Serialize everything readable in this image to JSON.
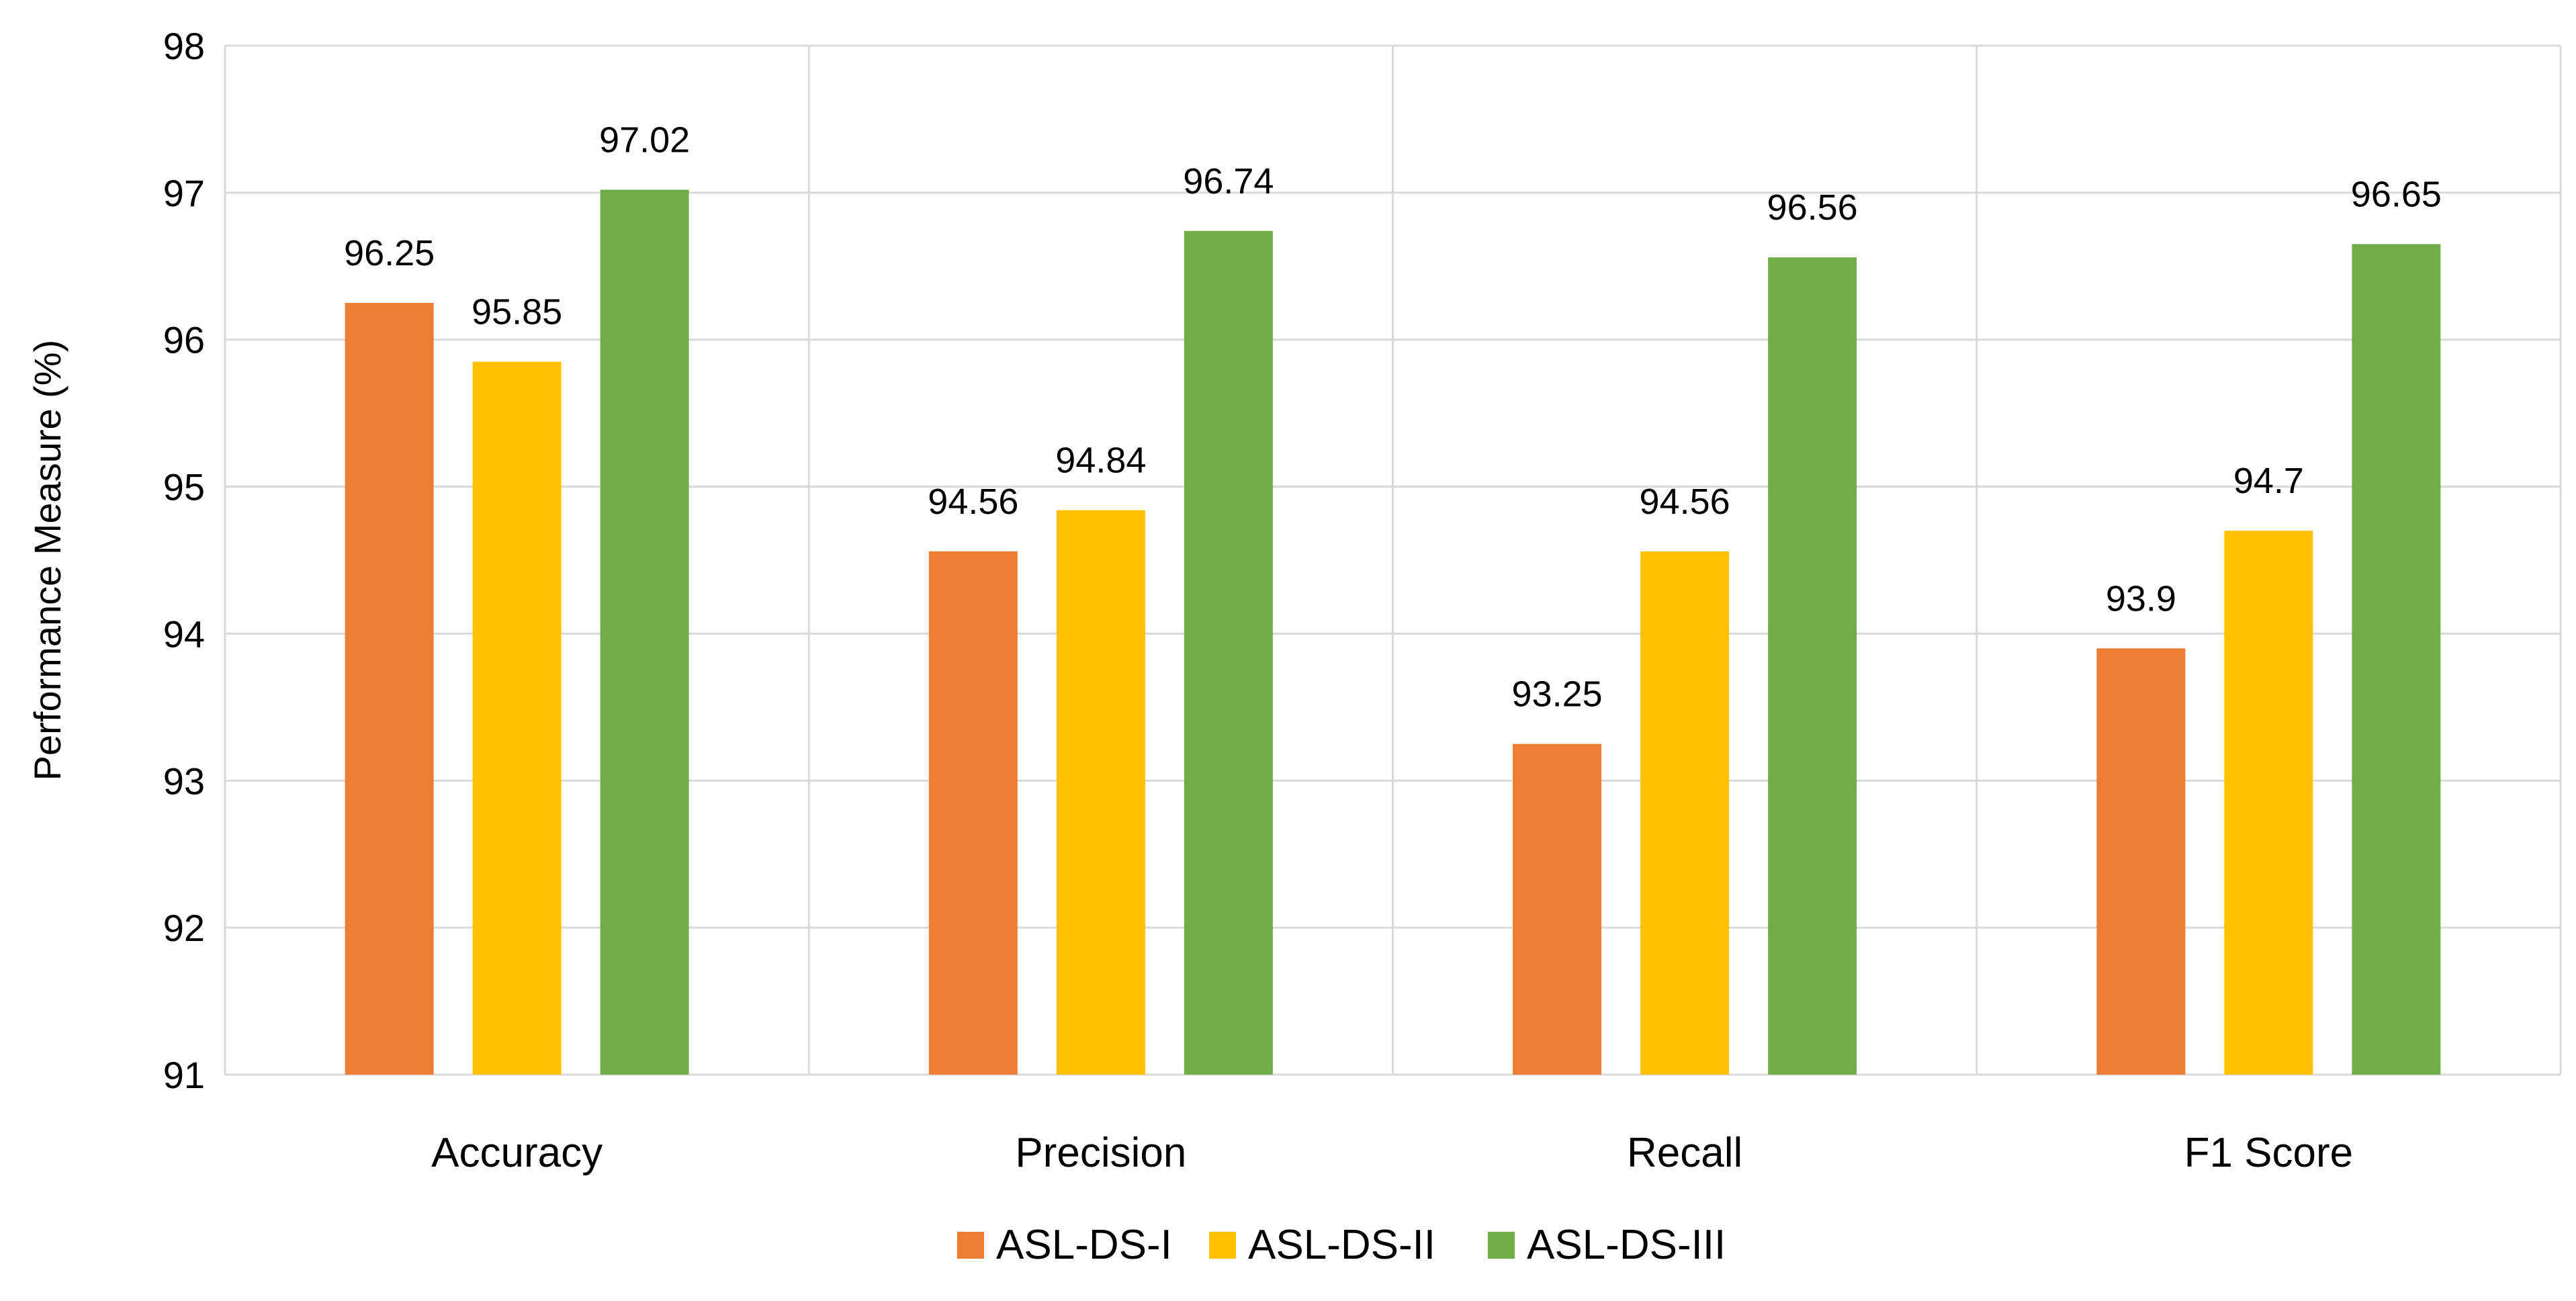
{
  "chart_data": {
    "type": "bar",
    "title": "",
    "xlabel": "",
    "ylabel": "Performance Measure (%)",
    "ylim": [
      91,
      98
    ],
    "yticks": [
      91,
      92,
      93,
      94,
      95,
      96,
      97,
      98
    ],
    "grid": true,
    "legend_position": "bottom",
    "categories": [
      "Accuracy",
      "Precision",
      "Recall",
      "F1 Score"
    ],
    "series": [
      {
        "name": "ASL-DS-I",
        "color": "#ED7D31",
        "values": [
          96.25,
          94.56,
          93.25,
          93.9
        ]
      },
      {
        "name": "ASL-DS-II",
        "color": "#FFC000",
        "values": [
          95.85,
          94.84,
          94.56,
          94.7
        ]
      },
      {
        "name": "ASL-DS-III",
        "color": "#70AD47",
        "values": [
          97.02,
          96.74,
          96.56,
          96.65
        ]
      }
    ]
  }
}
